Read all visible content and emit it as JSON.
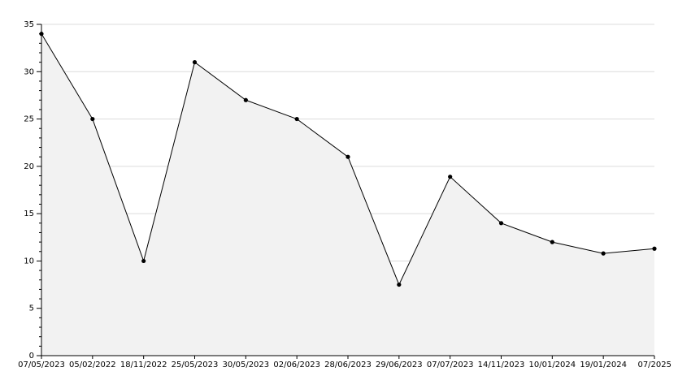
{
  "chart_data": {
    "type": "area",
    "categories": [
      "07/05/2023",
      "05/02/2022",
      "18/11/2022",
      "25/05/2023",
      "30/05/2023",
      "02/06/2023",
      "28/06/2023",
      "29/06/2023",
      "07/07/2023",
      "14/11/2023",
      "10/01/2024",
      "19/01/2024",
      "07/2025"
    ],
    "values": [
      34,
      25,
      10,
      31,
      27,
      25,
      21,
      7.5,
      18.9,
      14,
      12,
      10.8,
      11.3
    ],
    "color": "#000000",
    "fill": "#f2f2f2",
    "ylim": [
      0,
      35
    ],
    "yticks": [
      0,
      5,
      10,
      15,
      20,
      25,
      30,
      35
    ],
    "yticks_minor": [
      1,
      2,
      3,
      4,
      6,
      7,
      8,
      9,
      11,
      12,
      13,
      14,
      16,
      17,
      18,
      19,
      21,
      22,
      23,
      24,
      26,
      27,
      28,
      29,
      31,
      32,
      33,
      34
    ],
    "grid": true
  }
}
